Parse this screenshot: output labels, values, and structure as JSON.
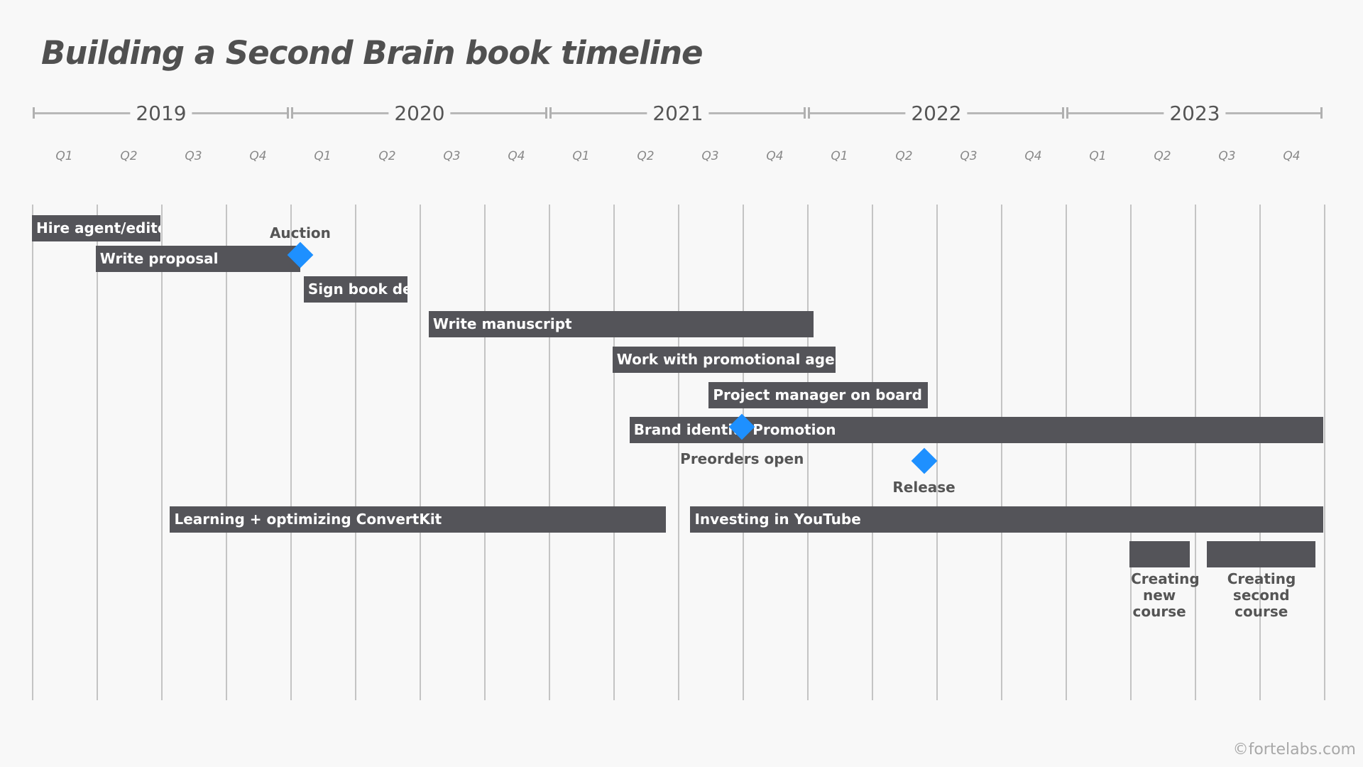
{
  "title": "Building a Second Brain book timeline",
  "years": [
    "2019",
    "2020",
    "2021",
    "2022",
    "2023"
  ],
  "quarters": [
    "Q1",
    "Q2",
    "Q3",
    "Q4"
  ],
  "colors": {
    "bar": "#545459",
    "milestone": "#1e90ff",
    "background": "#f8f8f8"
  },
  "tasks": [
    {
      "label": "Hire agent/editor",
      "start": "2019-01-01",
      "end": "2019-07-01"
    },
    {
      "label": "Write proposal",
      "start": "2019-04-01",
      "end": "2020-01-15"
    },
    {
      "label": "Sign book deal",
      "start": "2020-01-20",
      "end": "2020-06-15"
    },
    {
      "label": "Write manuscript",
      "start": "2020-07-15",
      "end": "2022-01-10"
    },
    {
      "label": "Work with promotional agency",
      "start": "2021-04-01",
      "end": "2022-02-10"
    },
    {
      "label": "Project manager on board",
      "start": "2021-08-15",
      "end": "2022-06-20"
    },
    {
      "label": "Brand identity design + media kit",
      "start": "2021-04-25",
      "end": "2022-01-30"
    },
    {
      "label": "Promotion",
      "start": "2021-10-10",
      "end": "2023-12-31"
    },
    {
      "label": "Learning + optimizing ConvertKit",
      "start": "2019-07-15",
      "end": "2021-06-15"
    },
    {
      "label": "Investing in YouTube",
      "start": "2021-07-20",
      "end": "2023-12-31"
    },
    {
      "label": "Creating new course",
      "start": "2023-04-01",
      "end": "2023-06-25"
    },
    {
      "label": "Creating second course",
      "start": "2023-07-20",
      "end": "2023-12-20"
    }
  ],
  "milestones": [
    {
      "label": "Auction",
      "date": "2020-01-15"
    },
    {
      "label": "Preorders open",
      "date": "2021-10-01"
    },
    {
      "label": "Release",
      "date": "2022-06-15"
    }
  ],
  "watermark": "©fortelabs.com"
}
